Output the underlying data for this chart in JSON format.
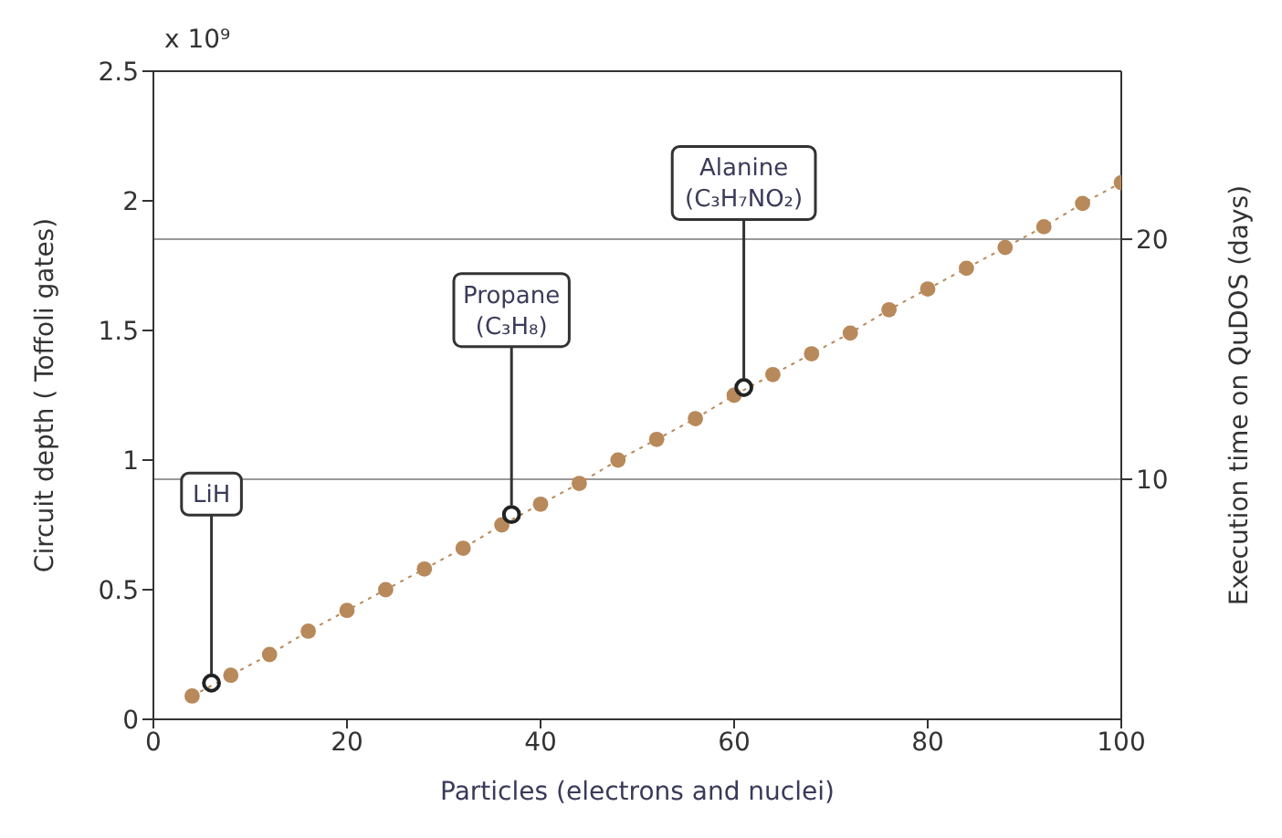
{
  "chart_data": {
    "type": "line",
    "xlabel": "Particles (electrons and nuclei)",
    "ylabel": "Circuit depth ( Toffoli gates)",
    "y2label": "Execution time on QuDOS (days)",
    "xlim": [
      0,
      100
    ],
    "xticks": [
      0,
      20,
      40,
      60,
      80,
      100
    ],
    "ylim": [
      0,
      2.5
    ],
    "yticks": [
      0,
      0.5,
      1,
      1.5,
      2,
      2.5
    ],
    "y2lim": [
      0,
      27
    ],
    "y2ticks": [
      10,
      20
    ],
    "grid": false,
    "legend": false,
    "marker": "circle",
    "line_style": "dotted",
    "series": [
      {
        "color": "#b8895a",
        "x": [
          4,
          8,
          12,
          16,
          20,
          24,
          28,
          32,
          36,
          40,
          44,
          48,
          52,
          56,
          60,
          64,
          68,
          72,
          76,
          80,
          84,
          88,
          92,
          96,
          100
        ],
        "values": [
          0.09,
          0.17,
          0.25,
          0.34,
          0.42,
          0.5,
          0.58,
          0.66,
          0.75,
          0.83,
          0.91,
          1.0,
          1.08,
          1.16,
          1.25,
          1.33,
          1.41,
          1.49,
          1.58,
          1.66,
          1.74,
          1.82,
          1.9,
          1.99,
          2.07
        ]
      },
      {
        "type": "scatter",
        "color": "#222222",
        "x": [
          6,
          37,
          61
        ],
        "values": [
          0.14,
          0.79,
          1.28
        ]
      }
    ],
    "ref_lines": [
      {
        "axis": "y2",
        "value": 10,
        "color": "#999999"
      },
      {
        "axis": "y2",
        "value": 20,
        "color": "#999999"
      }
    ],
    "annotations": [
      "x 10⁹",
      {
        "text": "LiH",
        "x": 6,
        "y": 0.14
      },
      {
        "text": "Propane (C₃H₈)",
        "x": 37,
        "y": 0.79
      },
      {
        "text": "Alanine (C₃H₇NO₂)",
        "x": 61,
        "y": 1.28
      }
    ]
  }
}
